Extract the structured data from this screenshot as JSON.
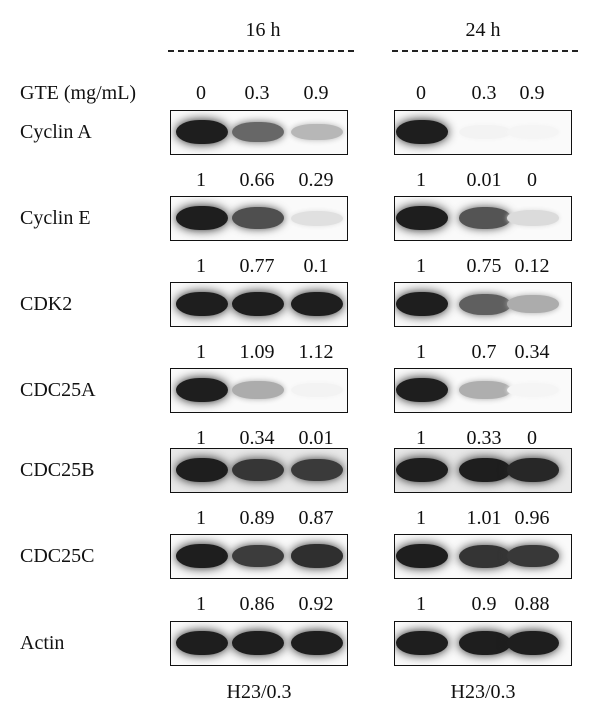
{
  "header": {
    "timepoints": [
      "16 h",
      "24 h"
    ],
    "treatment_label": "GTE (mg/mL)",
    "doses": [
      "0",
      "0.3",
      "0.9"
    ]
  },
  "blots": [
    {
      "label": "Cyclin A",
      "values": [
        [
          "1",
          "0.66",
          "0.29"
        ],
        [
          "1",
          "0.01",
          "0"
        ]
      ],
      "intensity": [
        [
          1.0,
          0.66,
          0.29
        ],
        [
          1.0,
          0.01,
          0.0
        ]
      ]
    },
    {
      "label": "Cyclin E",
      "values": [
        [
          "1",
          "0.77",
          "0.1"
        ],
        [
          "1",
          "0.75",
          "0.12"
        ]
      ],
      "intensity": [
        [
          1.0,
          0.77,
          0.1
        ],
        [
          1.0,
          0.75,
          0.12
        ]
      ]
    },
    {
      "label": "CDK2",
      "values": [
        [
          "1",
          "1.09",
          "1.12"
        ],
        [
          "1",
          "0.7",
          "0.34"
        ]
      ],
      "intensity": [
        [
          1.0,
          1.0,
          1.0
        ],
        [
          1.0,
          0.7,
          0.34
        ]
      ]
    },
    {
      "label": "CDC25A",
      "values": [
        [
          "1",
          "0.34",
          "0.01"
        ],
        [
          "1",
          "0.33",
          "0"
        ]
      ],
      "intensity": [
        [
          1.0,
          0.34,
          0.01
        ],
        [
          1.0,
          0.33,
          0.0
        ]
      ]
    },
    {
      "label": "CDC25B",
      "values": [
        [
          "1",
          "0.89",
          "0.87"
        ],
        [
          "1",
          "1.01",
          "0.96"
        ]
      ],
      "intensity": [
        [
          1.0,
          0.89,
          0.87
        ],
        [
          1.0,
          1.0,
          0.96
        ]
      ]
    },
    {
      "label": "CDC25C",
      "values": [
        [
          "1",
          "0.86",
          "0.92"
        ],
        [
          "1",
          "0.9",
          "0.88"
        ]
      ],
      "intensity": [
        [
          1.0,
          0.86,
          0.92
        ],
        [
          1.0,
          0.9,
          0.88
        ]
      ]
    },
    {
      "label": "Actin",
      "values": null,
      "intensity": [
        [
          1.0,
          1.0,
          1.0
        ],
        [
          1.0,
          1.0,
          1.0
        ]
      ]
    }
  ],
  "footer": [
    "H23/0.3",
    "H23/0.3"
  ]
}
